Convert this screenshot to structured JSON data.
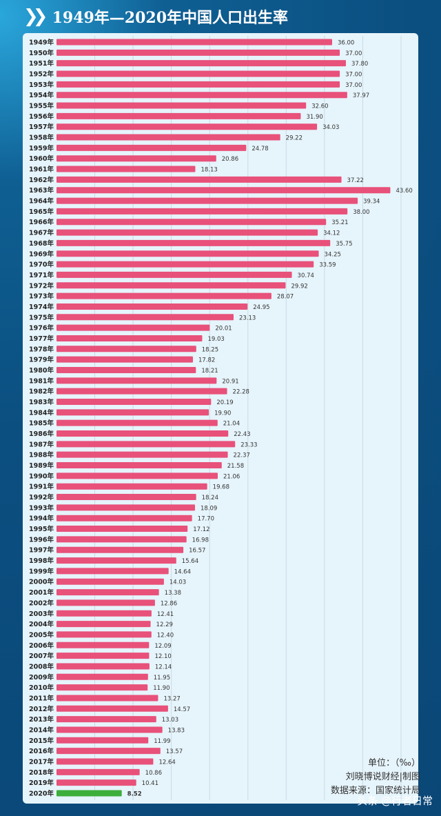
{
  "title": "1949年—2020年中国人口出生率",
  "notes": {
    "unit": "单位：（‰）",
    "maker": "刘晓博说财经|制图",
    "source": "数据来源：国家统计局"
  },
  "watermark": "头条 @行者日常",
  "colors": {
    "bar": "#e8517a",
    "highlight": "#3cae3c",
    "grid": "#c9dbe4"
  },
  "chart_data": {
    "type": "bar",
    "orientation": "horizontal",
    "title": "1949年—2020年中国人口出生率",
    "unit": "‰",
    "xlim": [
      0,
      45
    ],
    "grid": true,
    "categories": [
      "1949年",
      "1950年",
      "1951年",
      "1952年",
      "1953年",
      "1954年",
      "1955年",
      "1956年",
      "1957年",
      "1958年",
      "1959年",
      "1960年",
      "1961年",
      "1962年",
      "1963年",
      "1964年",
      "1965年",
      "1966年",
      "1967年",
      "1968年",
      "1969年",
      "1970年",
      "1971年",
      "1972年",
      "1973年",
      "1974年",
      "1975年",
      "1976年",
      "1977年",
      "1978年",
      "1979年",
      "1980年",
      "1981年",
      "1982年",
      "1983年",
      "1984年",
      "1985年",
      "1986年",
      "1987年",
      "1988年",
      "1989年",
      "1990年",
      "1991年",
      "1992年",
      "1993年",
      "1994年",
      "1995年",
      "1996年",
      "1997年",
      "1998年",
      "1999年",
      "2000年",
      "2001年",
      "2002年",
      "2003年",
      "2004年",
      "2005年",
      "2006年",
      "2007年",
      "2008年",
      "2009年",
      "2010年",
      "2011年",
      "2012年",
      "2013年",
      "2014年",
      "2015年",
      "2016年",
      "2017年",
      "2018年",
      "2019年",
      "2020年"
    ],
    "values": [
      "36.00",
      "37.00",
      "37.80",
      "37.00",
      "37.00",
      "37.97",
      "32.60",
      "31.90",
      "34.03",
      "29.22",
      "24.78",
      "20.86",
      "18.13",
      "37.22",
      "43.60",
      "39.34",
      "38.00",
      "35.21",
      "34.12",
      "35.75",
      "34.25",
      "33.59",
      "30.74",
      "29.92",
      "28.07",
      "24.95",
      "23.13",
      "20.01",
      "19.03",
      "18.25",
      "17.82",
      "18.21",
      "20.91",
      "22.28",
      "20.19",
      "19.90",
      "21.04",
      "22.43",
      "23.33",
      "22.37",
      "21.58",
      "21.06",
      "19.68",
      "18.24",
      "18.09",
      "17.70",
      "17.12",
      "16.98",
      "16.57",
      "15.64",
      "14.64",
      "14.03",
      "13.38",
      "12.86",
      "12.41",
      "12.29",
      "12.40",
      "12.09",
      "12.10",
      "12.14",
      "11.95",
      "11.90",
      "13.27",
      "14.57",
      "13.03",
      "13.83",
      "11.99",
      "13.57",
      "12.64",
      "10.86",
      "10.41",
      "8.52"
    ],
    "highlight": "2020年"
  }
}
